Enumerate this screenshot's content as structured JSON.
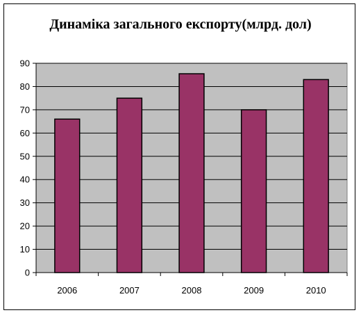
{
  "chart_data": {
    "type": "bar",
    "title": "Динаміка загального експорту(млрд. дол)",
    "xlabel": "",
    "ylabel": "",
    "categories": [
      "2006",
      "2007",
      "2008",
      "2009",
      "2010"
    ],
    "values": [
      66,
      75,
      85.5,
      70,
      83
    ],
    "ylim": [
      0,
      90
    ],
    "yticks": [
      0,
      10,
      20,
      30,
      40,
      50,
      60,
      70,
      80,
      90
    ],
    "grid": true,
    "legend": "none",
    "colors": {
      "bar": "#993366",
      "plot_background": "#c0c0c0",
      "gridline": "#000000"
    }
  }
}
